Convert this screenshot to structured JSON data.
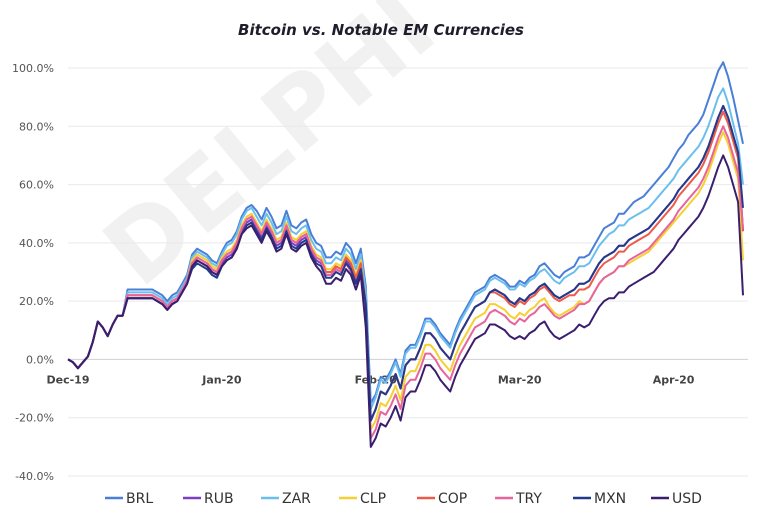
{
  "chart_data": {
    "type": "line",
    "title": "Bitcoin vs. Notable EM Currencies",
    "watermark": "DELPHI",
    "ylim": [
      -40,
      100
    ],
    "yticks": [
      "100.0%",
      "80.0%",
      "60.0%",
      "40.0%",
      "20.0%",
      "0.0%",
      "-20.0%",
      "-40.0%"
    ],
    "ytick_values": [
      100,
      80,
      60,
      40,
      20,
      0,
      -20,
      -40
    ],
    "xticks": [
      "Dec-19",
      "Jan-20",
      "Feb-20",
      "Mar-20",
      "Apr-20"
    ],
    "xtick_positions": [
      0,
      31,
      62,
      91,
      122
    ],
    "x_range": [
      0,
      137
    ],
    "grid": true,
    "legend_position": "bottom",
    "base": [
      0,
      -1,
      -3,
      -1,
      1,
      6,
      13,
      11,
      8,
      12,
      15,
      15,
      22,
      22,
      22,
      22,
      22,
      22,
      21,
      20,
      18,
      20,
      21,
      24,
      27,
      33,
      35,
      34,
      33,
      31,
      30,
      34,
      36,
      37,
      40,
      45,
      48,
      49,
      46,
      43,
      47,
      44,
      40,
      41,
      46,
      41,
      40,
      42,
      43,
      38,
      35,
      34,
      30,
      30,
      32,
      31,
      35,
      33,
      28,
      33,
      20,
      -20,
      -16,
      -10,
      -11,
      -8,
      -4,
      -9,
      -1,
      1,
      1,
      5,
      10,
      10,
      8,
      5,
      3,
      1,
      6,
      10,
      13,
      16,
      19,
      20,
      21,
      24,
      25,
      24,
      23,
      21,
      20,
      22,
      21,
      23,
      24,
      26,
      27,
      25,
      23,
      22,
      23,
      24,
      25,
      27,
      27,
      28,
      31,
      34,
      36,
      37,
      38,
      40,
      40,
      42,
      43,
      44,
      45,
      46,
      48,
      50,
      52,
      54,
      56,
      59,
      61,
      63,
      65,
      67,
      70,
      74,
      79,
      84,
      88,
      84,
      78,
      72,
      66
    ],
    "series": [
      {
        "name": "BRL",
        "color": "#4a7fd8",
        "offsets": [
          0,
          0,
          0,
          0,
          0,
          0,
          0,
          0,
          0,
          0,
          0,
          0,
          2,
          2,
          2,
          2,
          2,
          2,
          2,
          2,
          2,
          2,
          2,
          2,
          2,
          3,
          3,
          3,
          3,
          3,
          3,
          3,
          4,
          4,
          4,
          4,
          4,
          4,
          5,
          5,
          5,
          5,
          5,
          5,
          5,
          5,
          5,
          5,
          5,
          5,
          5,
          5,
          5,
          5,
          5,
          5,
          5,
          5,
          5,
          5,
          5,
          5,
          4,
          4,
          4,
          4,
          4,
          4,
          4,
          4,
          4,
          4,
          4,
          4,
          4,
          4,
          4,
          4,
          4,
          4,
          4,
          4,
          4,
          4,
          4,
          4,
          4,
          4,
          4,
          4,
          5,
          5,
          5,
          5,
          5,
          6,
          6,
          6,
          6,
          6,
          7,
          7,
          7,
          8,
          8,
          8,
          8,
          8,
          9,
          9,
          9,
          10,
          10,
          10,
          11,
          11,
          11,
          12,
          12,
          12,
          12,
          12,
          13,
          13,
          13,
          14,
          14,
          14,
          14,
          15,
          15,
          15,
          14,
          13,
          12,
          10,
          8
        ],
        "end": 74
      },
      {
        "name": "RUB",
        "color": "#7b3fc4",
        "offsets": [
          0,
          0,
          0,
          0,
          0,
          0,
          0,
          0,
          0,
          0,
          0,
          0,
          -1,
          -1,
          -1,
          -1,
          -1,
          -1,
          -1,
          -1,
          -1,
          -1,
          -1,
          -1,
          -1,
          -1,
          -1,
          -1,
          -1,
          -1,
          -1,
          -1,
          -1,
          -1,
          -1,
          -1,
          -1,
          -1,
          -1,
          -1,
          -1,
          -1,
          -1,
          -1,
          -1,
          -1,
          -1,
          -1,
          -1,
          -1,
          -1,
          -1,
          -1,
          -1,
          -1,
          -1,
          -1,
          -1,
          -1,
          -1,
          -1,
          -1,
          -1,
          -1,
          -1,
          -1,
          -1,
          -1,
          -1,
          -1,
          -1,
          -1,
          -1,
          -1,
          -1,
          -1,
          -1,
          -1,
          -1,
          -1,
          -1,
          -1,
          -1,
          -1,
          -1,
          -1,
          -1,
          -1,
          -1,
          -1,
          -1,
          -1,
          -1,
          -1,
          -1,
          -1,
          -1,
          -1,
          -1,
          -1,
          -1,
          -1,
          -1,
          -1,
          -1,
          -1,
          -1,
          -1,
          -1,
          -1,
          -1,
          -1,
          -1,
          -1,
          -1,
          -1,
          -1,
          -1,
          -1,
          -1,
          -1,
          -1,
          -1,
          -1,
          -1,
          -1,
          -1,
          -1,
          -1,
          -1,
          -1,
          -1,
          -1,
          -1,
          -1,
          -1,
          -1,
          -1
        ],
        "end": 44
      },
      {
        "name": "ZAR",
        "color": "#6bbfee",
        "offsets": [
          0,
          0,
          0,
          0,
          0,
          0,
          0,
          0,
          0,
          0,
          0,
          0,
          1,
          1,
          1,
          1,
          1,
          1,
          1,
          1,
          1,
          1,
          1,
          1,
          1,
          2,
          2,
          2,
          2,
          2,
          2,
          2,
          3,
          3,
          3,
          3,
          3,
          3,
          3,
          3,
          3,
          3,
          3,
          3,
          3,
          3,
          3,
          3,
          3,
          3,
          3,
          3,
          3,
          3,
          3,
          3,
          3,
          3,
          3,
          3,
          3,
          3,
          3,
          3,
          3,
          3,
          3,
          3,
          3,
          3,
          3,
          3,
          3,
          3,
          3,
          3,
          3,
          3,
          3,
          3,
          3,
          3,
          3,
          3,
          3,
          3,
          3,
          3,
          3,
          3,
          4,
          4,
          4,
          4,
          4,
          4,
          4,
          4,
          4,
          4,
          5,
          5,
          5,
          5,
          5,
          5,
          5,
          5,
          5,
          6,
          6,
          6,
          6,
          6,
          6,
          6,
          6,
          6,
          6,
          6,
          6,
          6,
          6,
          6,
          6,
          6,
          6,
          6,
          6,
          6,
          6,
          6,
          5,
          4,
          3,
          2,
          0
        ],
        "end": 60
      },
      {
        "name": "CLP",
        "color": "#f5d033",
        "offsets": [
          0,
          0,
          0,
          0,
          0,
          0,
          0,
          0,
          0,
          0,
          0,
          0,
          0,
          0,
          0,
          0,
          0,
          0,
          0,
          0,
          0,
          0,
          0,
          0,
          0,
          1,
          1,
          1,
          1,
          1,
          1,
          1,
          1,
          1,
          1,
          1,
          1,
          1,
          1,
          1,
          1,
          1,
          1,
          1,
          1,
          1,
          1,
          1,
          1,
          1,
          1,
          1,
          1,
          1,
          1,
          1,
          1,
          1,
          1,
          1,
          -3,
          -4,
          -5,
          -5,
          -5,
          -5,
          -5,
          -5,
          -5,
          -5,
          -5,
          -5,
          -5,
          -5,
          -5,
          -5,
          -5,
          -5,
          -5,
          -5,
          -5,
          -5,
          -5,
          -5,
          -5,
          -5,
          -6,
          -6,
          -6,
          -6,
          -6,
          -6,
          -6,
          -6,
          -6,
          -6,
          -6,
          -7,
          -7,
          -7,
          -7,
          -7,
          -7,
          -7,
          -8,
          -8,
          -8,
          -8,
          -8,
          -8,
          -8,
          -8,
          -8,
          -9,
          -9,
          -9,
          -9,
          -9,
          -9,
          -9,
          -9,
          -9,
          -9,
          -10,
          -10,
          -10,
          -10,
          -10,
          -10,
          -10,
          -10,
          -10,
          -10,
          -10,
          -10,
          -10,
          -10
        ],
        "end": 34
      },
      {
        "name": "COP",
        "color": "#ec5b4a",
        "offsets": [
          0,
          0,
          0,
          0,
          0,
          0,
          0,
          0,
          0,
          0,
          0,
          0,
          0,
          0,
          0,
          0,
          0,
          0,
          0,
          0,
          0,
          0,
          0,
          0,
          0,
          0,
          0,
          0,
          0,
          0,
          0,
          0,
          0,
          0,
          0,
          0,
          0,
          0,
          0,
          0,
          0,
          0,
          0,
          0,
          0,
          0,
          0,
          0,
          0,
          0,
          0,
          0,
          0,
          0,
          0,
          0,
          0,
          0,
          0,
          0,
          -1,
          -1,
          -1,
          -1,
          -1,
          -1,
          -1,
          -1,
          -1,
          -1,
          -1,
          -1,
          -1,
          -1,
          -1,
          -1,
          -1,
          -1,
          -1,
          -1,
          -1,
          -1,
          -1,
          -1,
          -1,
          -1,
          -2,
          -2,
          -2,
          -2,
          -2,
          -2,
          -2,
          -2,
          -2,
          -2,
          -2,
          -2,
          -2,
          -2,
          -2,
          -2,
          -3,
          -3,
          -3,
          -3,
          -3,
          -3,
          -3,
          -3,
          -3,
          -3,
          -3,
          -3,
          -3,
          -3,
          -3,
          -3,
          -3,
          -3,
          -3,
          -3,
          -3,
          -3,
          -3,
          -3,
          -3,
          -3,
          -3,
          -3,
          -3,
          -3,
          -3,
          -3,
          -3,
          -3,
          -3,
          -3
        ],
        "end": 44
      },
      {
        "name": "TRY",
        "color": "#e8649c",
        "offsets": [
          0,
          0,
          0,
          0,
          0,
          0,
          0,
          0,
          0,
          0,
          0,
          0,
          0,
          0,
          0,
          0,
          0,
          0,
          0,
          0,
          0,
          0,
          0,
          0,
          0,
          0,
          0,
          0,
          0,
          0,
          0,
          0,
          0,
          0,
          0,
          0,
          0,
          0,
          0,
          0,
          0,
          0,
          0,
          0,
          0,
          0,
          0,
          0,
          0,
          0,
          0,
          0,
          -1,
          -1,
          -1,
          -1,
          -2,
          -3,
          -4,
          -4,
          -6,
          -7,
          -8,
          -8,
          -8,
          -8,
          -8,
          -8,
          -8,
          -8,
          -8,
          -8,
          -8,
          -8,
          -8,
          -8,
          -8,
          -8,
          -8,
          -8,
          -8,
          -8,
          -8,
          -8,
          -8,
          -8,
          -8,
          -8,
          -8,
          -8,
          -8,
          -8,
          -8,
          -8,
          -8,
          -8,
          -8,
          -8,
          -8,
          -8,
          -8,
          -8,
          -8,
          -8,
          -8,
          -8,
          -8,
          -8,
          -8,
          -8,
          -8,
          -8,
          -8,
          -8,
          -8,
          -8,
          -8,
          -8,
          -8,
          -8,
          -8,
          -8,
          -8,
          -8,
          -8,
          -8,
          -8,
          -8,
          -8,
          -8,
          -8,
          -8,
          -8,
          -8,
          -8,
          -8,
          -8,
          -8
        ],
        "end": 45
      },
      {
        "name": "MXN",
        "color": "#233a8a",
        "offsets": [
          0,
          0,
          0,
          0,
          0,
          0,
          0,
          0,
          0,
          0,
          0,
          0,
          -1,
          -1,
          -1,
          -1,
          -1,
          -1,
          -1,
          -1,
          -1,
          -1,
          -1,
          -1,
          -1,
          -2,
          -2,
          -2,
          -2,
          -2,
          -2,
          -2,
          -2,
          -2,
          -2,
          -2,
          -2,
          -2,
          -2,
          -2,
          -2,
          -2,
          -2,
          -2,
          -2,
          -2,
          -2,
          -2,
          -2,
          -2,
          -2,
          -2,
          -2,
          -2,
          -2,
          -2,
          -2,
          -2,
          -2,
          -2,
          -1,
          -1,
          -1,
          -1,
          -1,
          -1,
          -1,
          -1,
          -1,
          -1,
          -1,
          -1,
          -1,
          -1,
          -1,
          -1,
          -1,
          -1,
          -1,
          -1,
          -1,
          -1,
          -1,
          -1,
          -1,
          -1,
          -1,
          -1,
          -1,
          -1,
          -1,
          -1,
          -1,
          -1,
          -1,
          -1,
          -1,
          -1,
          -1,
          -1,
          -1,
          -1,
          -1,
          -1,
          -1,
          -1,
          -1,
          -1,
          -1,
          -1,
          -1,
          -1,
          -1,
          -1,
          -1,
          -1,
          -1,
          -1,
          -1,
          -1,
          -1,
          -1,
          -1,
          -1,
          -1,
          -1,
          -1,
          -1,
          -1,
          -1,
          -1,
          -1,
          -1,
          -1,
          -1,
          -1,
          -1,
          -1
        ],
        "end": 52
      },
      {
        "name": "USD",
        "color": "#3a1f6e",
        "offsets": [
          0,
          0,
          0,
          0,
          0,
          0,
          0,
          0,
          0,
          0,
          0,
          0,
          -1,
          -1,
          -1,
          -1,
          -1,
          -1,
          -1,
          -1,
          -1,
          -1,
          -1,
          -1,
          -1,
          -1,
          -1,
          -1,
          -1,
          -1,
          -1,
          -2,
          -2,
          -2,
          -2,
          -2,
          -3,
          -3,
          -3,
          -3,
          -3,
          -3,
          -3,
          -3,
          -3,
          -3,
          -3,
          -3,
          -3,
          -3,
          -3,
          -4,
          -4,
          -4,
          -4,
          -4,
          -4,
          -4,
          -4,
          -4,
          -9,
          -10,
          -11,
          -12,
          -12,
          -12,
          -12,
          -12,
          -12,
          -12,
          -12,
          -12,
          -12,
          -12,
          -12,
          -12,
          -12,
          -12,
          -12,
          -12,
          -12,
          -12,
          -12,
          -12,
          -12,
          -12,
          -13,
          -13,
          -13,
          -13,
          -13,
          -14,
          -14,
          -14,
          -14,
          -14,
          -14,
          -15,
          -15,
          -15,
          -15,
          -15,
          -15,
          -15,
          -16,
          -16,
          -16,
          -16,
          -16,
          -16,
          -17,
          -17,
          -17,
          -17,
          -17,
          -17,
          -17,
          -17,
          -18,
          -18,
          -18,
          -18,
          -18,
          -18,
          -18,
          -18,
          -18,
          -18,
          -18,
          -18,
          -18,
          -18,
          -18,
          -18,
          -18,
          -18,
          -18,
          -18,
          -18,
          -18
        ],
        "end": 22
      }
    ]
  }
}
